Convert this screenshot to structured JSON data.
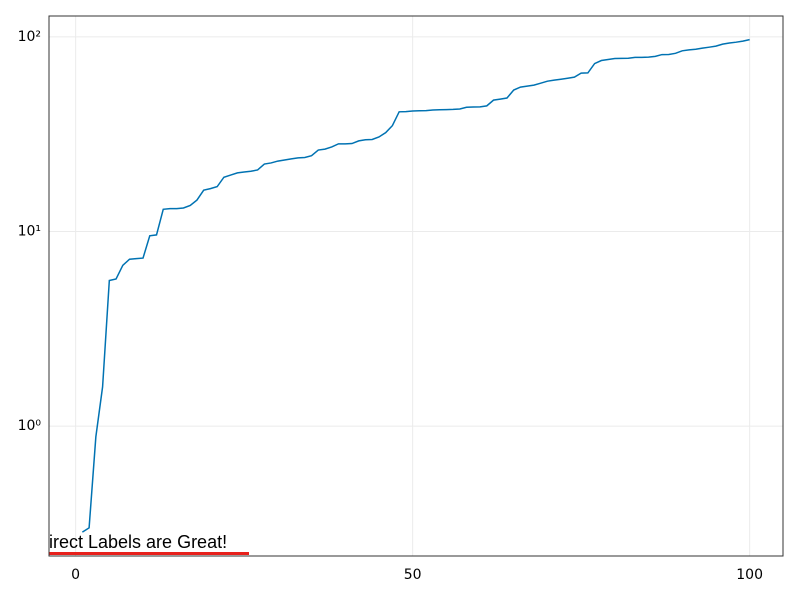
{
  "chart_data": {
    "type": "line",
    "annotation": "Direct Labels are Great!",
    "x": [
      1,
      2,
      3,
      4,
      5,
      6,
      7,
      8,
      9,
      10,
      11,
      12,
      13,
      14,
      15,
      16,
      17,
      18,
      19,
      20,
      21,
      22,
      23,
      24,
      25,
      26,
      27,
      28,
      29,
      30,
      31,
      32,
      33,
      34,
      35,
      36,
      37,
      38,
      39,
      40,
      41,
      42,
      43,
      44,
      45,
      46,
      47,
      48,
      49,
      50,
      51,
      52,
      53,
      54,
      55,
      56,
      57,
      58,
      59,
      60,
      61,
      62,
      63,
      64,
      65,
      66,
      67,
      68,
      69,
      70,
      71,
      72,
      73,
      74,
      75,
      76,
      77,
      78,
      79,
      80,
      81,
      82,
      83,
      84,
      85,
      86,
      87,
      88,
      89,
      90,
      91,
      92,
      93,
      94,
      95,
      96,
      97,
      98,
      99,
      100
    ],
    "series": [
      {
        "color": "#0072b2",
        "values": [
          0.285,
          0.3,
          0.88,
          1.59,
          5.6,
          5.7,
          6.7,
          7.2,
          7.25,
          7.3,
          9.5,
          9.6,
          13.0,
          13.1,
          13.1,
          13.2,
          13.6,
          14.5,
          16.3,
          16.6,
          17.0,
          19.0,
          19.5,
          20.0,
          20.2,
          20.4,
          20.7,
          22.2,
          22.5,
          23.0,
          23.3,
          23.6,
          23.9,
          24.0,
          24.5,
          26.2,
          26.5,
          27.2,
          28.2,
          28.2,
          28.3,
          29.2,
          29.6,
          29.7,
          30.6,
          32.2,
          35.0,
          41.2,
          41.3,
          41.6,
          41.7,
          41.8,
          42.1,
          42.2,
          42.3,
          42.4,
          42.6,
          43.5,
          43.6,
          43.7,
          44.2,
          47.3,
          47.9,
          48.5,
          53.3,
          55.2,
          55.8,
          56.5,
          57.8,
          59.2,
          59.9,
          60.6,
          61.3,
          62.1,
          65.1,
          65.3,
          72.9,
          75.6,
          76.5,
          77.4,
          77.5,
          77.6,
          78.4,
          78.5,
          78.7,
          79.4,
          81.1,
          81.2,
          82.3,
          84.8,
          85.7,
          86.4,
          87.5,
          88.5,
          89.6,
          91.8,
          93.0,
          93.9,
          95.1,
          96.8
        ]
      }
    ],
    "xlim": [
      -3.95,
      104.95
    ],
    "xticks": [
      0,
      50,
      100
    ],
    "ylim": [
      0.215,
      128
    ],
    "ylog": true,
    "yticks": [
      {
        "value": 1,
        "label": "10⁰"
      },
      {
        "value": 10,
        "label": "10¹"
      },
      {
        "value": 100,
        "label": "10²"
      }
    ],
    "grid": true
  }
}
